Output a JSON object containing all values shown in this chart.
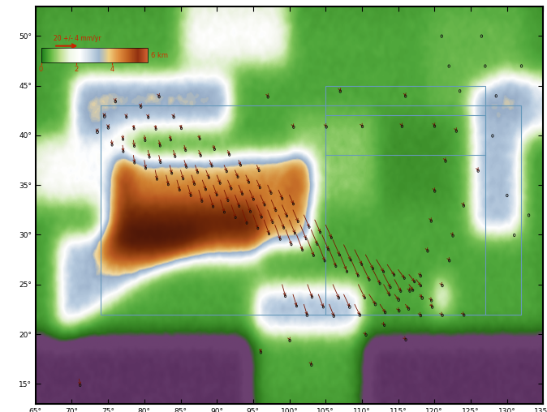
{
  "lon_min": 65,
  "lon_max": 135,
  "lat_min": 13,
  "lat_max": 53,
  "tick_lons": [
    65,
    70,
    75,
    80,
    85,
    90,
    95,
    100,
    105,
    110,
    115,
    120,
    125,
    130,
    135
  ],
  "tick_lats": [
    15,
    20,
    25,
    30,
    35,
    40,
    45,
    50
  ],
  "ocean_color": "#6b4070",
  "scale_text": "20 +/- 4 mm/yr",
  "scale_color": "#cc2200",
  "arrow_color": "#7a1500",
  "ellipse_edgecolor": "#111111",
  "border_rect_color": "#6699bb",
  "colorbar_colors": [
    "#1a7a1a",
    "#3a9e3a",
    "#78c050",
    "#b8e088",
    "#e8f0d8",
    "#ffffff",
    "#d0dde8",
    "#a8c0d8",
    "#f0d898",
    "#e0a050",
    "#c86020",
    "#a03010",
    "#703008"
  ],
  "vectors": [
    {
      "lon": 76.0,
      "lat": 43.5,
      "vx": 0.12,
      "vy": -0.5
    },
    {
      "lon": 79.5,
      "lat": 43.0,
      "vx": 0.18,
      "vy": -0.7
    },
    {
      "lon": 82.0,
      "lat": 44.0,
      "vx": 0.25,
      "vy": -0.6
    },
    {
      "lon": 74.5,
      "lat": 42.0,
      "vx": 0.08,
      "vy": -0.45
    },
    {
      "lon": 77.5,
      "lat": 42.0,
      "vx": 0.22,
      "vy": -0.9
    },
    {
      "lon": 80.5,
      "lat": 42.0,
      "vx": 0.3,
      "vy": -1.1
    },
    {
      "lon": 84.0,
      "lat": 42.0,
      "vx": 0.35,
      "vy": -0.9
    },
    {
      "lon": 75.0,
      "lat": 41.0,
      "vx": 0.18,
      "vy": -1.2
    },
    {
      "lon": 78.5,
      "lat": 41.0,
      "vx": 0.42,
      "vy": -1.8
    },
    {
      "lon": 81.5,
      "lat": 41.0,
      "vx": 0.55,
      "vy": -2.0
    },
    {
      "lon": 85.0,
      "lat": 41.0,
      "vx": 0.6,
      "vy": -1.6
    },
    {
      "lon": 73.5,
      "lat": 40.5,
      "vx": 0.1,
      "vy": -0.8
    },
    {
      "lon": 77.0,
      "lat": 40.0,
      "vx": 0.35,
      "vy": -2.2
    },
    {
      "lon": 80.0,
      "lat": 40.0,
      "vx": 0.65,
      "vy": -2.8
    },
    {
      "lon": 83.5,
      "lat": 40.0,
      "vx": 0.8,
      "vy": -2.5
    },
    {
      "lon": 87.5,
      "lat": 40.0,
      "vx": 0.85,
      "vy": -2.0
    },
    {
      "lon": 75.5,
      "lat": 39.5,
      "vx": 0.3,
      "vy": -2.5
    },
    {
      "lon": 78.5,
      "lat": 39.5,
      "vx": 0.7,
      "vy": -3.2
    },
    {
      "lon": 82.0,
      "lat": 39.5,
      "vx": 1.0,
      "vy": -3.0
    },
    {
      "lon": 85.5,
      "lat": 39.0,
      "vx": 1.1,
      "vy": -2.8
    },
    {
      "lon": 89.5,
      "lat": 39.0,
      "vx": 1.0,
      "vy": -2.2
    },
    {
      "lon": 77.0,
      "lat": 39.0,
      "vx": 0.55,
      "vy": -3.5
    },
    {
      "lon": 80.5,
      "lat": 38.5,
      "vx": 1.1,
      "vy": -3.8
    },
    {
      "lon": 84.0,
      "lat": 38.5,
      "vx": 1.4,
      "vy": -3.5
    },
    {
      "lon": 87.5,
      "lat": 38.5,
      "vx": 1.5,
      "vy": -3.0
    },
    {
      "lon": 91.5,
      "lat": 38.5,
      "vx": 1.3,
      "vy": -2.5
    },
    {
      "lon": 78.5,
      "lat": 38.0,
      "vx": 0.85,
      "vy": -4.2
    },
    {
      "lon": 82.0,
      "lat": 38.0,
      "vx": 1.3,
      "vy": -4.0
    },
    {
      "lon": 85.5,
      "lat": 37.5,
      "vx": 1.7,
      "vy": -3.8
    },
    {
      "lon": 89.0,
      "lat": 37.5,
      "vx": 1.8,
      "vy": -3.2
    },
    {
      "lon": 93.0,
      "lat": 37.5,
      "vx": 1.6,
      "vy": -2.8
    },
    {
      "lon": 80.0,
      "lat": 37.5,
      "vx": 1.1,
      "vy": -4.5
    },
    {
      "lon": 83.5,
      "lat": 37.0,
      "vx": 1.6,
      "vy": -4.5
    },
    {
      "lon": 87.0,
      "lat": 37.0,
      "vx": 2.0,
      "vy": -4.0
    },
    {
      "lon": 91.0,
      "lat": 37.0,
      "vx": 2.0,
      "vy": -3.5
    },
    {
      "lon": 95.5,
      "lat": 37.0,
      "vx": 1.8,
      "vy": -3.0
    },
    {
      "lon": 81.5,
      "lat": 36.5,
      "vx": 1.4,
      "vy": -5.0
    },
    {
      "lon": 85.0,
      "lat": 36.5,
      "vx": 2.0,
      "vy": -4.8
    },
    {
      "lon": 88.5,
      "lat": 36.5,
      "vx": 2.3,
      "vy": -4.2
    },
    {
      "lon": 92.5,
      "lat": 36.5,
      "vx": 2.2,
      "vy": -3.8
    },
    {
      "lon": 83.0,
      "lat": 36.0,
      "vx": 1.7,
      "vy": -5.2
    },
    {
      "lon": 86.5,
      "lat": 36.0,
      "vx": 2.3,
      "vy": -5.0
    },
    {
      "lon": 90.0,
      "lat": 36.0,
      "vx": 2.5,
      "vy": -4.5
    },
    {
      "lon": 94.0,
      "lat": 36.0,
      "vx": 2.3,
      "vy": -4.0
    },
    {
      "lon": 84.5,
      "lat": 35.5,
      "vx": 2.0,
      "vy": -5.5
    },
    {
      "lon": 88.0,
      "lat": 35.5,
      "vx": 2.6,
      "vy": -5.2
    },
    {
      "lon": 91.5,
      "lat": 35.5,
      "vx": 2.7,
      "vy": -4.8
    },
    {
      "lon": 95.5,
      "lat": 35.5,
      "vx": 2.5,
      "vy": -4.2
    },
    {
      "lon": 86.0,
      "lat": 35.0,
      "vx": 2.3,
      "vy": -5.8
    },
    {
      "lon": 89.5,
      "lat": 35.0,
      "vx": 2.8,
      "vy": -5.5
    },
    {
      "lon": 93.0,
      "lat": 35.0,
      "vx": 2.9,
      "vy": -5.0
    },
    {
      "lon": 97.0,
      "lat": 35.0,
      "vx": 2.7,
      "vy": -4.5
    },
    {
      "lon": 87.5,
      "lat": 34.5,
      "vx": 2.5,
      "vy": -6.2
    },
    {
      "lon": 91.0,
      "lat": 34.5,
      "vx": 3.0,
      "vy": -5.8
    },
    {
      "lon": 94.5,
      "lat": 34.5,
      "vx": 3.1,
      "vy": -5.2
    },
    {
      "lon": 98.5,
      "lat": 34.5,
      "vx": 2.9,
      "vy": -4.8
    },
    {
      "lon": 89.0,
      "lat": 34.0,
      "vx": 2.7,
      "vy": -6.5
    },
    {
      "lon": 92.5,
      "lat": 34.0,
      "vx": 3.2,
      "vy": -6.2
    },
    {
      "lon": 96.0,
      "lat": 34.0,
      "vx": 3.3,
      "vy": -5.5
    },
    {
      "lon": 100.0,
      "lat": 34.0,
      "vx": 3.1,
      "vy": -5.0
    },
    {
      "lon": 90.5,
      "lat": 33.5,
      "vx": 3.0,
      "vy": -6.8
    },
    {
      "lon": 94.0,
      "lat": 33.5,
      "vx": 3.5,
      "vy": -6.5
    },
    {
      "lon": 97.5,
      "lat": 33.5,
      "vx": 3.5,
      "vy": -5.8
    },
    {
      "lon": 92.0,
      "lat": 33.0,
      "vx": 3.2,
      "vy": -7.0
    },
    {
      "lon": 95.5,
      "lat": 33.0,
      "vx": 3.7,
      "vy": -6.8
    },
    {
      "lon": 99.0,
      "lat": 33.0,
      "vx": 3.7,
      "vy": -6.2
    },
    {
      "lon": 93.5,
      "lat": 32.5,
      "vx": 3.5,
      "vy": -7.3
    },
    {
      "lon": 97.0,
      "lat": 32.5,
      "vx": 3.9,
      "vy": -7.0
    },
    {
      "lon": 100.5,
      "lat": 32.5,
      "vx": 3.9,
      "vy": -6.5
    },
    {
      "lon": 95.0,
      "lat": 32.0,
      "vx": 3.7,
      "vy": -7.5
    },
    {
      "lon": 98.5,
      "lat": 32.0,
      "vx": 4.1,
      "vy": -7.2
    },
    {
      "lon": 102.0,
      "lat": 32.0,
      "vx": 4.1,
      "vy": -6.8
    },
    {
      "lon": 96.5,
      "lat": 31.5,
      "vx": 3.9,
      "vy": -7.8
    },
    {
      "lon": 100.0,
      "lat": 31.5,
      "vx": 4.3,
      "vy": -7.5
    },
    {
      "lon": 103.5,
      "lat": 31.5,
      "vx": 4.3,
      "vy": -7.0
    },
    {
      "lon": 98.0,
      "lat": 31.0,
      "vx": 4.1,
      "vy": -8.0
    },
    {
      "lon": 101.5,
      "lat": 31.0,
      "vx": 4.5,
      "vy": -7.8
    },
    {
      "lon": 105.0,
      "lat": 31.0,
      "vx": 4.5,
      "vy": -7.2
    },
    {
      "lon": 99.5,
      "lat": 30.5,
      "vx": 4.3,
      "vy": -8.2
    },
    {
      "lon": 103.0,
      "lat": 30.5,
      "vx": 4.7,
      "vy": -8.0
    },
    {
      "lon": 101.0,
      "lat": 30.0,
      "vx": 4.5,
      "vy": -8.5
    },
    {
      "lon": 104.5,
      "lat": 30.0,
      "vx": 4.9,
      "vy": -8.2
    },
    {
      "lon": 102.5,
      "lat": 29.5,
      "vx": 4.7,
      "vy": -8.8
    },
    {
      "lon": 106.0,
      "lat": 29.5,
      "vx": 5.1,
      "vy": -8.5
    },
    {
      "lon": 104.0,
      "lat": 29.0,
      "vx": 4.9,
      "vy": -9.0
    },
    {
      "lon": 107.5,
      "lat": 29.0,
      "vx": 5.3,
      "vy": -8.5
    },
    {
      "lon": 105.5,
      "lat": 28.5,
      "vx": 5.1,
      "vy": -9.2
    },
    {
      "lon": 109.0,
      "lat": 28.5,
      "vx": 5.5,
      "vy": -8.2
    },
    {
      "lon": 107.0,
      "lat": 28.0,
      "vx": 5.3,
      "vy": -9.5
    },
    {
      "lon": 110.5,
      "lat": 28.0,
      "vx": 5.7,
      "vy": -7.8
    },
    {
      "lon": 108.5,
      "lat": 27.5,
      "vx": 5.5,
      "vy": -9.0
    },
    {
      "lon": 112.0,
      "lat": 27.5,
      "vx": 5.5,
      "vy": -6.8
    },
    {
      "lon": 110.0,
      "lat": 27.0,
      "vx": 5.7,
      "vy": -8.5
    },
    {
      "lon": 113.5,
      "lat": 27.0,
      "vx": 5.3,
      "vy": -5.8
    },
    {
      "lon": 111.5,
      "lat": 26.5,
      "vx": 5.5,
      "vy": -7.8
    },
    {
      "lon": 115.0,
      "lat": 26.5,
      "vx": 4.8,
      "vy": -4.8
    },
    {
      "lon": 113.0,
      "lat": 26.0,
      "vx": 5.2,
      "vy": -7.2
    },
    {
      "lon": 116.5,
      "lat": 26.0,
      "vx": 4.2,
      "vy": -4.0
    },
    {
      "lon": 114.5,
      "lat": 25.5,
      "vx": 4.8,
      "vy": -6.5
    },
    {
      "lon": 117.5,
      "lat": 25.5,
      "vx": 3.5,
      "vy": -3.5
    },
    {
      "lon": 99.0,
      "lat": 25.0,
      "vx": 2.5,
      "vy": -6.5
    },
    {
      "lon": 102.5,
      "lat": 25.0,
      "vx": 3.5,
      "vy": -7.0
    },
    {
      "lon": 106.0,
      "lat": 25.0,
      "vx": 4.5,
      "vy": -7.5
    },
    {
      "lon": 109.5,
      "lat": 25.0,
      "vx": 5.0,
      "vy": -7.5
    },
    {
      "lon": 113.0,
      "lat": 25.0,
      "vx": 4.5,
      "vy": -5.8
    },
    {
      "lon": 116.5,
      "lat": 25.0,
      "vx": 3.0,
      "vy": -3.2
    },
    {
      "lon": 100.5,
      "lat": 24.0,
      "vx": 2.8,
      "vy": -6.5
    },
    {
      "lon": 104.0,
      "lat": 24.0,
      "vx": 3.8,
      "vy": -7.0
    },
    {
      "lon": 107.5,
      "lat": 24.0,
      "vx": 4.5,
      "vy": -7.0
    },
    {
      "lon": 111.0,
      "lat": 24.0,
      "vx": 4.8,
      "vy": -5.5
    },
    {
      "lon": 114.5,
      "lat": 24.0,
      "vx": 3.2,
      "vy": -3.0
    },
    {
      "lon": 118.0,
      "lat": 24.0,
      "vx": 1.8,
      "vy": -2.0
    },
    {
      "lon": 102.0,
      "lat": 23.0,
      "vx": 2.5,
      "vy": -6.0
    },
    {
      "lon": 105.5,
      "lat": 23.0,
      "vx": 3.5,
      "vy": -6.5
    },
    {
      "lon": 109.0,
      "lat": 23.0,
      "vx": 4.0,
      "vy": -6.0
    },
    {
      "lon": 112.5,
      "lat": 23.0,
      "vx": 4.0,
      "vy": -4.5
    },
    {
      "lon": 116.0,
      "lat": 23.0,
      "vx": 2.5,
      "vy": -2.5
    },
    {
      "lon": 119.5,
      "lat": 23.0,
      "vx": 1.2,
      "vy": -1.5
    },
    {
      "lon": 97.0,
      "lat": 44.0,
      "vx": 0.3,
      "vy": -0.7
    },
    {
      "lon": 107.0,
      "lat": 44.5,
      "vx": 0.15,
      "vy": -0.4
    },
    {
      "lon": 116.0,
      "lat": 44.0,
      "vx": 0.1,
      "vy": -0.3
    },
    {
      "lon": 100.5,
      "lat": 41.0,
      "vx": 0.5,
      "vy": -0.9
    },
    {
      "lon": 105.0,
      "lat": 41.0,
      "vx": 0.55,
      "vy": -0.8
    },
    {
      "lon": 110.0,
      "lat": 41.0,
      "vx": 0.4,
      "vy": -0.6
    },
    {
      "lon": 115.5,
      "lat": 41.0,
      "vx": 0.25,
      "vy": -0.5
    },
    {
      "lon": 120.0,
      "lat": 41.0,
      "vx": 0.15,
      "vy": -0.4
    },
    {
      "lon": 122.0,
      "lat": 47.0,
      "vx": 0.05,
      "vy": -0.18
    },
    {
      "lon": 127.0,
      "lat": 47.0,
      "vx": 0.04,
      "vy": -0.15
    },
    {
      "lon": 132.0,
      "lat": 47.0,
      "vx": 0.03,
      "vy": -0.12
    },
    {
      "lon": 121.0,
      "lat": 50.0,
      "vx": 0.03,
      "vy": -0.1
    },
    {
      "lon": 126.5,
      "lat": 50.0,
      "vx": 0.025,
      "vy": -0.08
    },
    {
      "lon": 123.5,
      "lat": 44.5,
      "vx": 0.08,
      "vy": -0.22
    },
    {
      "lon": 128.5,
      "lat": 44.0,
      "vx": 0.06,
      "vy": -0.18
    },
    {
      "lon": 123.0,
      "lat": 40.5,
      "vx": 0.18,
      "vy": -0.35
    },
    {
      "lon": 128.0,
      "lat": 40.0,
      "vx": 0.12,
      "vy": -0.25
    },
    {
      "lon": 121.5,
      "lat": 37.5,
      "vx": 0.25,
      "vy": -0.45
    },
    {
      "lon": 126.0,
      "lat": 36.5,
      "vx": 0.18,
      "vy": -0.35
    },
    {
      "lon": 120.0,
      "lat": 34.5,
      "vx": 0.3,
      "vy": -0.55
    },
    {
      "lon": 124.0,
      "lat": 33.0,
      "vx": 0.22,
      "vy": -0.42
    },
    {
      "lon": 119.5,
      "lat": 31.5,
      "vx": 0.35,
      "vy": -0.65
    },
    {
      "lon": 122.5,
      "lat": 30.0,
      "vx": 0.3,
      "vy": -0.5
    },
    {
      "lon": 119.0,
      "lat": 28.5,
      "vx": 0.45,
      "vy": -0.7
    },
    {
      "lon": 122.0,
      "lat": 27.5,
      "vx": 0.4,
      "vy": -0.55
    },
    {
      "lon": 118.0,
      "lat": 26.0,
      "vx": 0.55,
      "vy": -0.75
    },
    {
      "lon": 121.0,
      "lat": 25.0,
      "vx": 0.5,
      "vy": -0.6
    },
    {
      "lon": 116.5,
      "lat": 24.5,
      "vx": 0.65,
      "vy": -0.8
    },
    {
      "lon": 119.5,
      "lat": 23.5,
      "vx": 0.55,
      "vy": -0.65
    },
    {
      "lon": 115.0,
      "lat": 22.5,
      "vx": 0.75,
      "vy": -0.85
    },
    {
      "lon": 118.0,
      "lat": 22.0,
      "vx": 0.65,
      "vy": -0.7
    },
    {
      "lon": 121.0,
      "lat": 22.0,
      "vx": 0.55,
      "vy": -0.55
    },
    {
      "lon": 124.0,
      "lat": 22.0,
      "vx": 0.45,
      "vy": -0.45
    },
    {
      "lon": 130.0,
      "lat": 34.0,
      "vx": 0.12,
      "vy": -0.25
    },
    {
      "lon": 133.0,
      "lat": 32.0,
      "vx": 0.1,
      "vy": -0.2
    },
    {
      "lon": 131.0,
      "lat": 30.0,
      "vx": 0.12,
      "vy": -0.22
    },
    {
      "lon": 71.0,
      "lat": 15.5,
      "vx": 0.8,
      "vy": -3.5
    },
    {
      "lon": 96.0,
      "lat": 18.5,
      "vx": 0.4,
      "vy": -1.8
    },
    {
      "lon": 100.0,
      "lat": 19.5,
      "vx": 0.35,
      "vy": -0.8
    },
    {
      "lon": 103.0,
      "lat": 17.0,
      "vx": 0.3,
      "vy": -0.5
    },
    {
      "lon": 110.5,
      "lat": 20.0,
      "vx": 0.4,
      "vy": -0.4
    },
    {
      "lon": 116.0,
      "lat": 19.5,
      "vx": 0.35,
      "vy": -0.3
    },
    {
      "lon": 113.0,
      "lat": 21.0,
      "vx": 0.6,
      "vy": -0.55
    }
  ],
  "ellipse_radii": [
    0.5,
    0.5,
    0.5,
    0.6,
    0.45,
    0.45,
    0.5,
    0.55,
    0.42,
    0.42,
    0.45,
    0.6,
    0.42,
    0.42,
    0.42,
    0.42,
    0.45,
    0.42,
    0.42,
    0.42,
    0.45,
    0.42,
    0.42,
    0.42,
    0.45,
    0.45,
    0.42,
    0.42,
    0.42,
    0.42,
    0.42,
    0.42,
    0.42,
    0.42,
    0.42,
    0.42,
    0.42,
    0.42,
    0.42,
    0.42,
    0.42,
    0.42,
    0.42,
    0.42,
    0.42,
    0.42,
    0.42,
    0.42,
    0.42,
    0.42,
    0.42,
    0.42,
    0.42,
    0.42,
    0.42,
    0.42,
    0.42,
    0.42,
    0.42,
    0.42,
    0.42,
    0.42,
    0.42,
    0.42,
    0.42,
    0.42,
    0.42,
    0.42,
    0.42,
    0.42,
    0.42,
    0.42,
    0.42,
    0.42,
    0.42,
    0.42,
    0.42,
    0.42,
    0.42,
    0.42,
    0.42,
    0.42,
    0.42,
    0.42,
    0.42,
    0.42,
    0.42,
    0.42,
    0.42,
    0.42,
    0.42,
    0.42,
    0.42,
    0.42,
    0.42,
    0.42,
    0.42,
    0.42,
    0.42,
    0.42,
    0.45,
    0.48,
    0.5,
    0.42,
    0.42,
    0.42,
    0.42,
    0.45,
    0.55,
    0.55,
    0.55,
    0.55,
    0.55,
    0.52,
    0.52,
    0.5,
    0.5,
    0.5,
    0.5,
    0.5,
    0.5,
    0.5,
    0.5,
    0.5,
    0.5,
    0.5,
    0.5,
    0.5,
    0.5,
    0.5,
    0.5,
    0.5,
    0.5,
    0.5,
    0.5,
    0.5,
    0.5,
    0.5,
    0.5,
    0.5,
    0.5,
    0.5,
    0.5,
    0.5,
    0.5,
    0.5,
    0.5,
    0.5,
    0.5,
    0.5,
    0.5,
    0.5,
    0.5,
    0.5,
    0.5,
    0.5,
    0.5,
    0.5,
    0.5,
    0.5,
    0.45,
    0.45,
    0.5,
    0.5,
    0.5
  ]
}
